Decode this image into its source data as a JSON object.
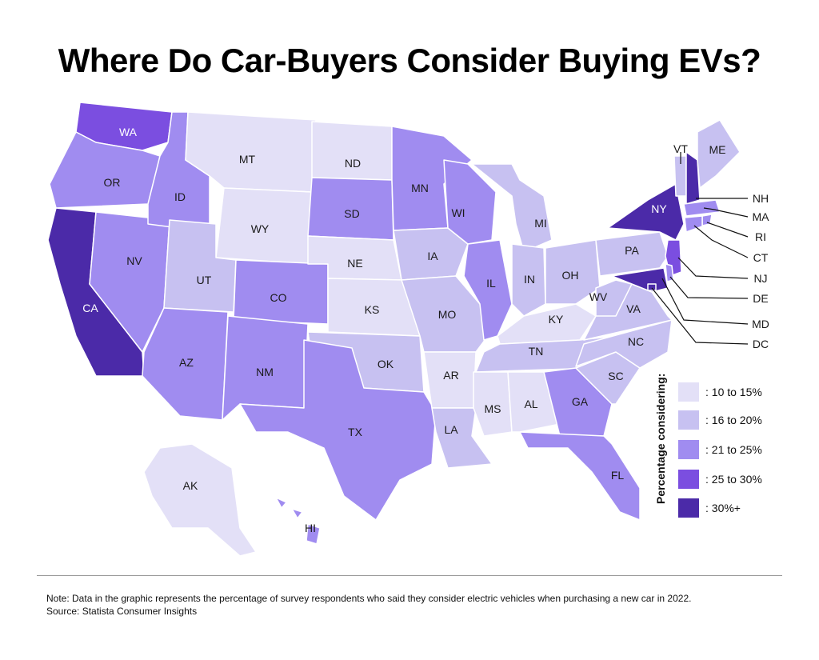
{
  "title": "Where Do Car-Buyers Consider Buying EVs?",
  "legend": {
    "title": "Percentage considering:",
    "items": [
      {
        "label": ": 10 to 15%",
        "color": "#e3e0f7"
      },
      {
        "label": ": 16 to 20%",
        "color": "#c7c1f1"
      },
      {
        "label": ": 21 to 25%",
        "color": "#a08cf0"
      },
      {
        "label": ": 25 to 30%",
        "color": "#7b4ee0"
      },
      {
        "label": ": 30%+",
        "color": "#4b2aa8"
      }
    ]
  },
  "states": [
    {
      "abbr": "WA",
      "tier": 3
    },
    {
      "abbr": "OR",
      "tier": 2
    },
    {
      "abbr": "CA",
      "tier": 4
    },
    {
      "abbr": "NV",
      "tier": 2
    },
    {
      "abbr": "ID",
      "tier": 2
    },
    {
      "abbr": "MT",
      "tier": 0
    },
    {
      "abbr": "WY",
      "tier": 0
    },
    {
      "abbr": "UT",
      "tier": 1
    },
    {
      "abbr": "AZ",
      "tier": 2
    },
    {
      "abbr": "CO",
      "tier": 2
    },
    {
      "abbr": "NM",
      "tier": 2
    },
    {
      "abbr": "ND",
      "tier": 0
    },
    {
      "abbr": "SD",
      "tier": 2
    },
    {
      "abbr": "NE",
      "tier": 0
    },
    {
      "abbr": "KS",
      "tier": 0
    },
    {
      "abbr": "OK",
      "tier": 1
    },
    {
      "abbr": "TX",
      "tier": 2
    },
    {
      "abbr": "MN",
      "tier": 2
    },
    {
      "abbr": "IA",
      "tier": 1
    },
    {
      "abbr": "MO",
      "tier": 1
    },
    {
      "abbr": "AR",
      "tier": 0
    },
    {
      "abbr": "LA",
      "tier": 1
    },
    {
      "abbr": "WI",
      "tier": 2
    },
    {
      "abbr": "IL",
      "tier": 2
    },
    {
      "abbr": "MI",
      "tier": 1
    },
    {
      "abbr": "IN",
      "tier": 1
    },
    {
      "abbr": "OH",
      "tier": 1
    },
    {
      "abbr": "KY",
      "tier": 0
    },
    {
      "abbr": "TN",
      "tier": 1
    },
    {
      "abbr": "MS",
      "tier": 0
    },
    {
      "abbr": "AL",
      "tier": 0
    },
    {
      "abbr": "GA",
      "tier": 2
    },
    {
      "abbr": "FL",
      "tier": 2
    },
    {
      "abbr": "SC",
      "tier": 1
    },
    {
      "abbr": "NC",
      "tier": 1
    },
    {
      "abbr": "VA",
      "tier": 1
    },
    {
      "abbr": "WV",
      "tier": 1
    },
    {
      "abbr": "PA",
      "tier": 1
    },
    {
      "abbr": "NY",
      "tier": 4
    },
    {
      "abbr": "VT",
      "tier": 1
    },
    {
      "abbr": "NH",
      "tier": 4
    },
    {
      "abbr": "ME",
      "tier": 1
    },
    {
      "abbr": "MA",
      "tier": 2
    },
    {
      "abbr": "RI",
      "tier": 2
    },
    {
      "abbr": "CT",
      "tier": 2
    },
    {
      "abbr": "NJ",
      "tier": 3
    },
    {
      "abbr": "DE",
      "tier": 2
    },
    {
      "abbr": "MD",
      "tier": 4
    },
    {
      "abbr": "DC",
      "tier": 4
    },
    {
      "abbr": "AK",
      "tier": 0
    },
    {
      "abbr": "HI",
      "tier": 2
    }
  ],
  "note": "Note: Data in the graphic represents the percentage of survey respondents who said they consider electric vehicles when purchasing a new car in 2022.",
  "source": "Source: Statista Consumer Insights"
}
